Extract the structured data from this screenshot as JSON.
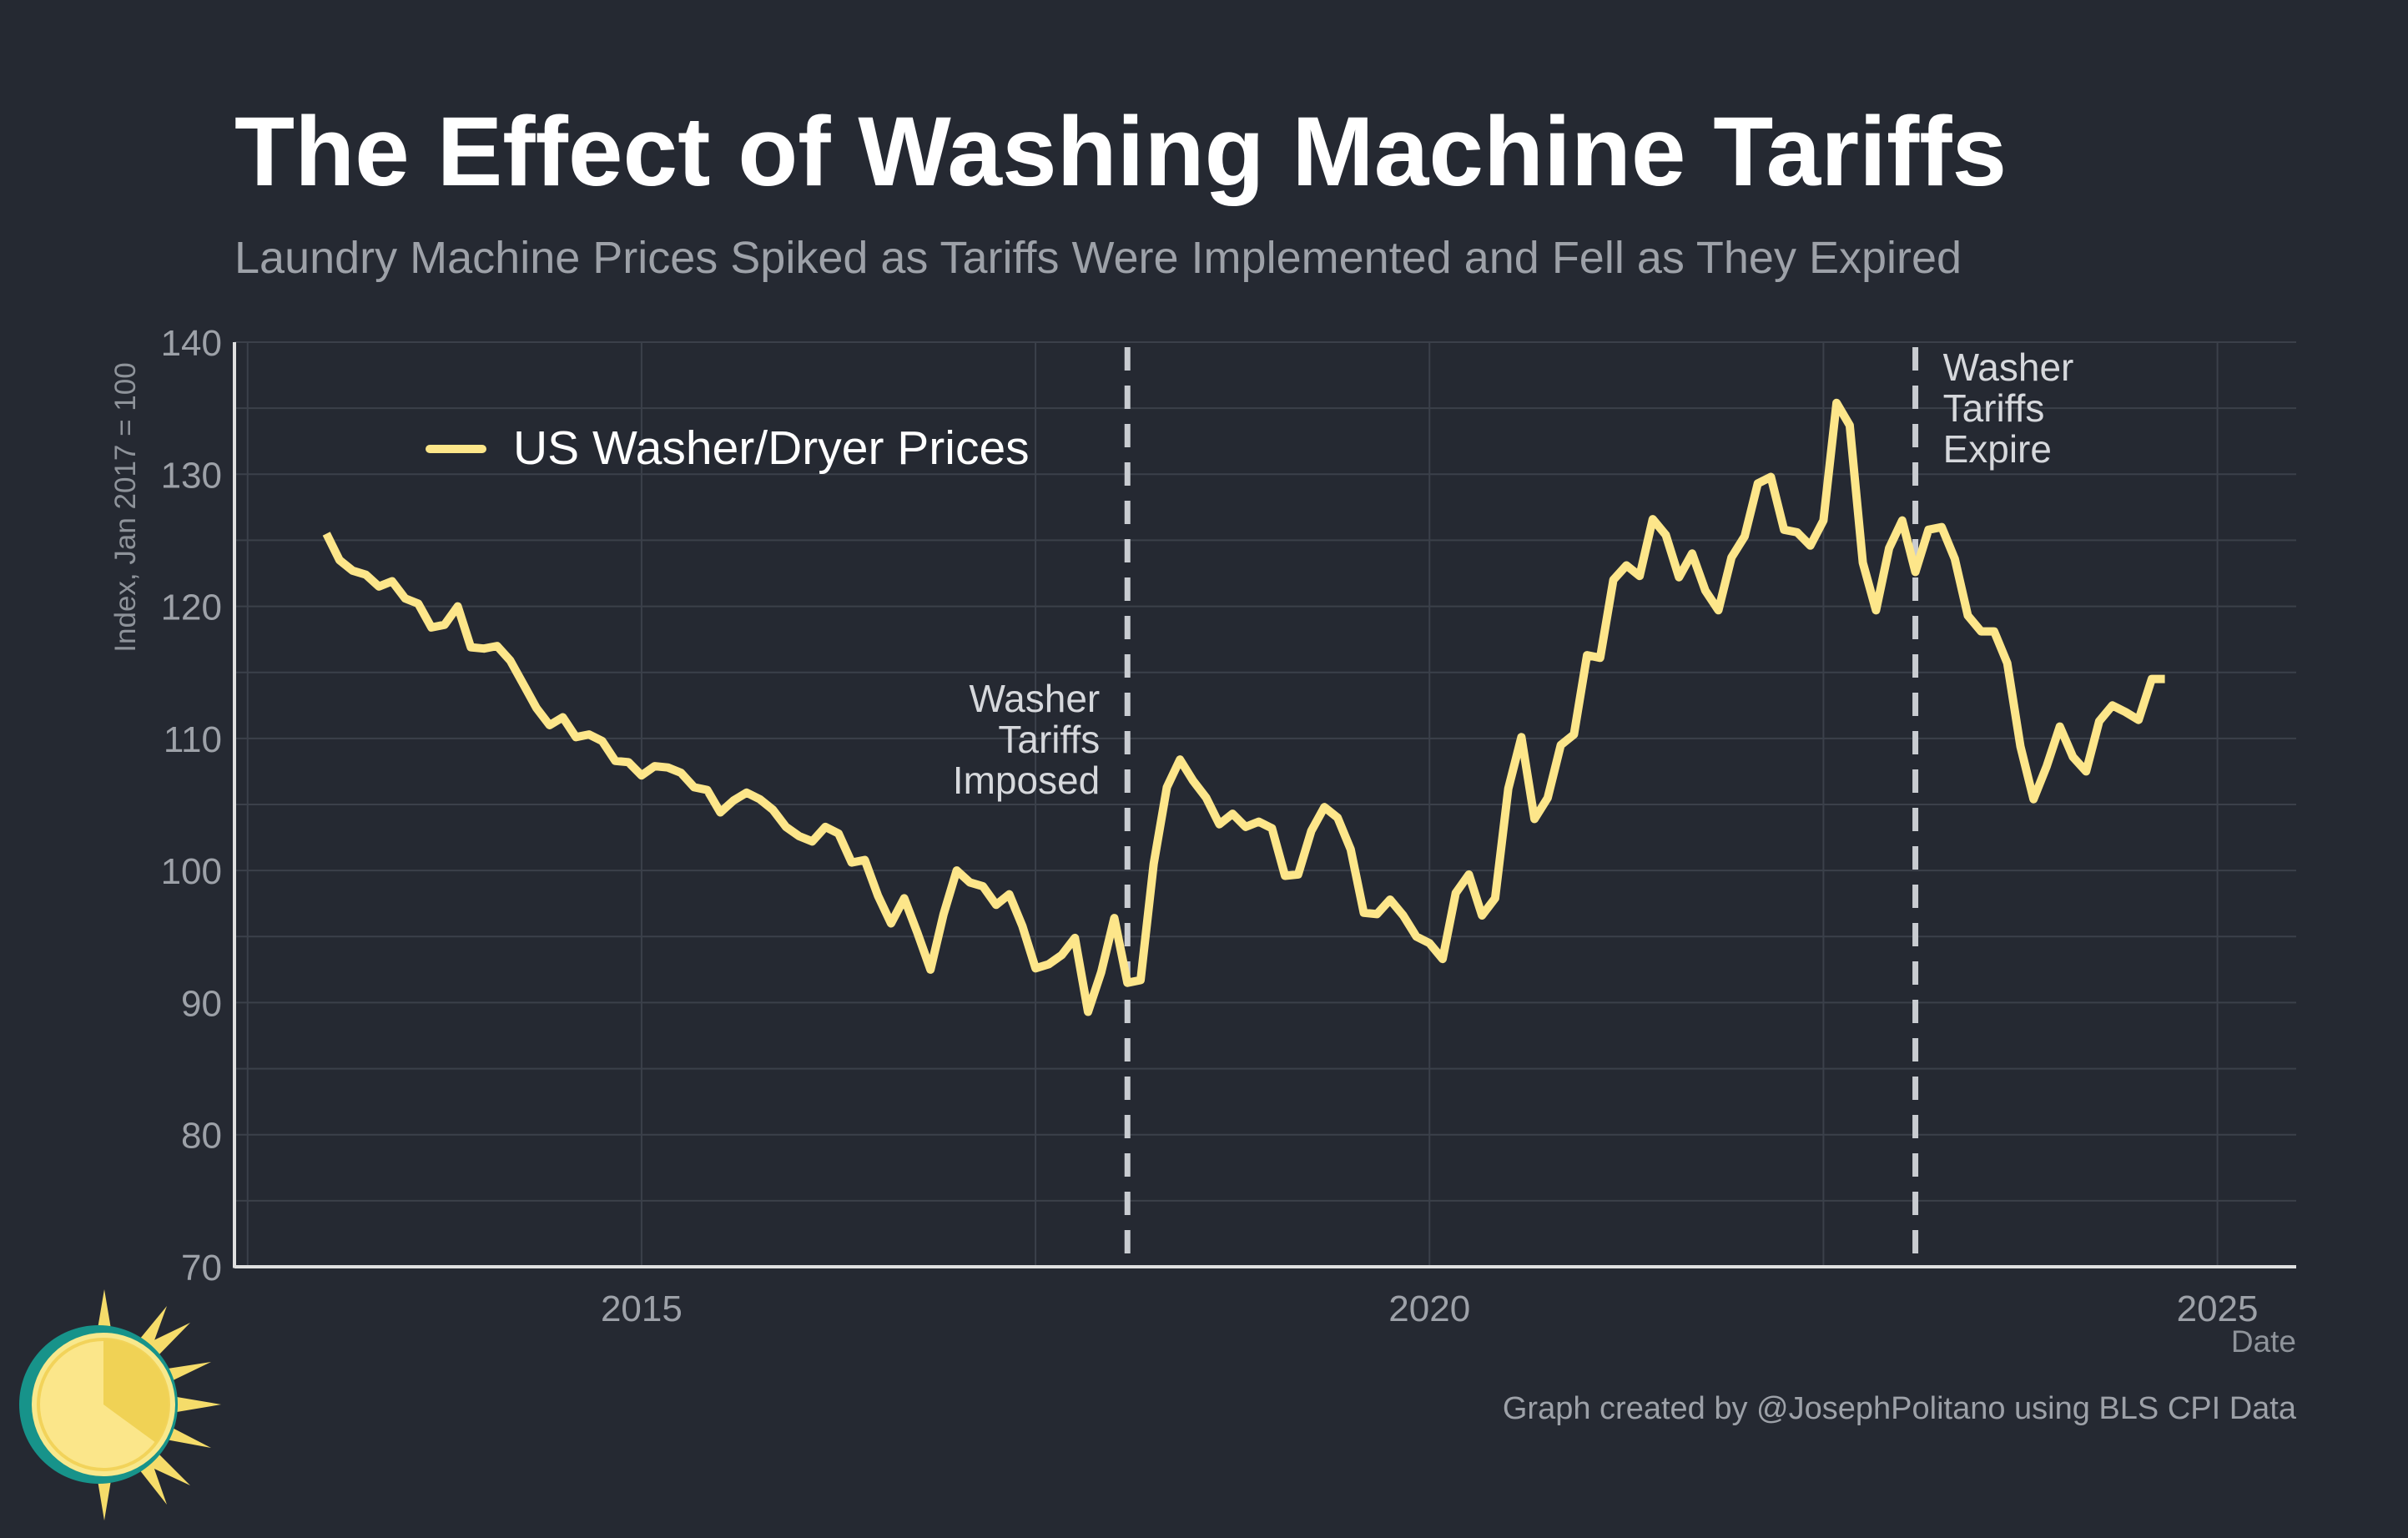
{
  "colors": {
    "background": "#252932",
    "line": "#fde68a",
    "grid": "#3b404a",
    "axis": "#e0e0e0",
    "vline": "#c9ccd1"
  },
  "chart_data": {
    "type": "line",
    "title": "The Effect of Washing Machine Tariffs",
    "subtitle": "Laundry Machine Prices Spiked as Tariffs Were Implemented and Fell as They Expired",
    "xlabel": "Date",
    "ylabel": "Index, Jan 2017 = 100",
    "xlim": [
      "2012-06-01",
      "2025-07-01"
    ],
    "ylim": [
      70,
      140
    ],
    "x_ticks": [
      "2015-01-01",
      "2020-01-01",
      "2025-01-01"
    ],
    "x_tick_labels": [
      "2015",
      "2020",
      "2025"
    ],
    "y_ticks": [
      70,
      80,
      90,
      100,
      110,
      120,
      130,
      140
    ],
    "grid": true,
    "legend": {
      "position": "top-left",
      "entries": [
        "US Washer/Dryer Prices"
      ]
    },
    "annotations": [
      {
        "date": "2018-02-01",
        "lines": [
          "Washer",
          "Tariffs",
          "Imposed"
        ]
      },
      {
        "date": "2023-02-01",
        "lines": [
          "Washer",
          "Tariffs",
          "Expire"
        ]
      }
    ],
    "credit": "Graph created by @JosephPolitano using BLS CPI Data",
    "series": [
      {
        "name": "US Washer/Dryer Prices",
        "start": "2013-01",
        "frequency": "monthly",
        "values": [
          125.5,
          123.5,
          122.7,
          122.4,
          121.5,
          121.9,
          120.6,
          120.2,
          118.4,
          118.6,
          120.0,
          116.9,
          116.8,
          117.0,
          115.9,
          114.1,
          112.3,
          111.0,
          111.6,
          110.1,
          110.3,
          109.8,
          108.3,
          108.2,
          107.2,
          107.9,
          107.8,
          107.4,
          106.3,
          106.1,
          104.4,
          105.3,
          105.9,
          105.4,
          104.6,
          103.3,
          102.6,
          102.2,
          103.3,
          102.8,
          100.6,
          100.8,
          98.1,
          96.0,
          97.9,
          95.3,
          92.5,
          96.7,
          100.0,
          99.1,
          98.8,
          97.4,
          98.2,
          95.8,
          92.6,
          92.9,
          93.6,
          94.9,
          89.3,
          92.3,
          96.4,
          91.5,
          91.7,
          100.5,
          106.3,
          108.4,
          106.8,
          105.5,
          103.5,
          104.3,
          103.3,
          103.7,
          103.2,
          99.6,
          99.7,
          103.0,
          104.8,
          104.0,
          101.6,
          96.8,
          96.7,
          97.8,
          96.6,
          95.0,
          94.5,
          93.3,
          98.3,
          99.7,
          96.6,
          97.9,
          106.2,
          110.1,
          103.9,
          105.5,
          109.5,
          110.3,
          116.3,
          116.1,
          122.0,
          123.1,
          122.3,
          126.6,
          125.4,
          122.2,
          124.0,
          121.2,
          119.7,
          123.7,
          125.3,
          129.3,
          129.8,
          125.8,
          125.6,
          124.6,
          126.5,
          135.4,
          133.7,
          123.3,
          119.7,
          124.4,
          126.5,
          122.6,
          125.8,
          126.0,
          123.6,
          119.3,
          118.1,
          118.1,
          115.7,
          109.4,
          105.4,
          107.9,
          110.9,
          108.6,
          107.5,
          111.3,
          112.5,
          112.0,
          111.4,
          114.5,
          114.5
        ]
      }
    ]
  }
}
